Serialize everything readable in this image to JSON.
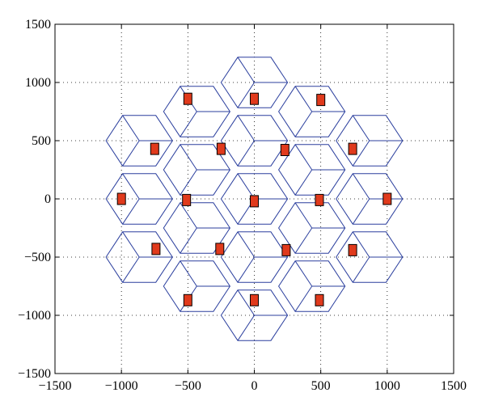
{
  "chart_data": {
    "type": "scatter",
    "title": "",
    "xlabel": "",
    "ylabel": "",
    "xlim": [
      -1500,
      1500
    ],
    "ylim": [
      -1500,
      1500
    ],
    "xticks": [
      -1500,
      -1000,
      -500,
      0,
      500,
      1000,
      1500
    ],
    "yticks": [
      -1500,
      -1000,
      -500,
      0,
      500,
      1000,
      1500
    ],
    "xtick_labels": [
      "−1500",
      "−1000",
      "−500",
      "0",
      "500",
      "1000",
      "1500"
    ],
    "ytick_labels": [
      "−1500",
      "−1000",
      "−500",
      "0",
      "500",
      "1000",
      "1500"
    ],
    "grid": true,
    "hex_circumradius": 250,
    "hex_centers": [
      [
        0,
        0
      ],
      [
        0,
        500
      ],
      [
        0,
        -500
      ],
      [
        433,
        250
      ],
      [
        433,
        -250
      ],
      [
        -433,
        250
      ],
      [
        -433,
        -250
      ],
      [
        0,
        1000
      ],
      [
        0,
        -1000
      ],
      [
        866,
        500
      ],
      [
        866,
        -500
      ],
      [
        -866,
        500
      ],
      [
        -866,
        -500
      ],
      [
        433,
        750
      ],
      [
        -433,
        750
      ],
      [
        433,
        -750
      ],
      [
        -433,
        -750
      ],
      [
        866,
        0
      ],
      [
        -866,
        0
      ]
    ],
    "base_stations": [
      [
        0,
        -20
      ],
      [
        -500,
        860
      ],
      [
        0,
        860
      ],
      [
        500,
        850
      ],
      [
        -750,
        430
      ],
      [
        -250,
        430
      ],
      [
        230,
        420
      ],
      [
        740,
        430
      ],
      [
        -1000,
        0
      ],
      [
        -510,
        -10
      ],
      [
        490,
        -10
      ],
      [
        1000,
        0
      ],
      [
        -740,
        -430
      ],
      [
        -260,
        -430
      ],
      [
        240,
        -440
      ],
      [
        740,
        -440
      ],
      [
        -500,
        -870
      ],
      [
        0,
        -870
      ],
      [
        490,
        -870
      ]
    ],
    "colors": {
      "cell_edge": "#2b3f9e",
      "base_station_fill": "#e03a1c",
      "base_station_stroke": "#000000",
      "grid": "#000000"
    }
  }
}
